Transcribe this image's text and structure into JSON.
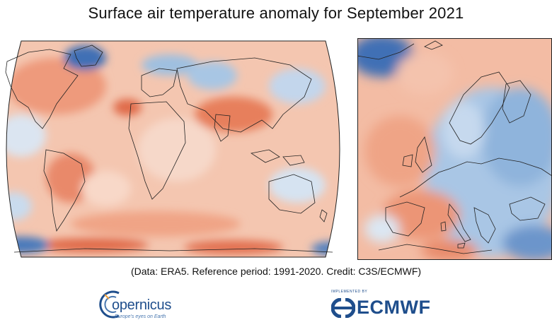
{
  "title": "Surface air temperature anomaly for September 2021",
  "credit": "(Data: ERA5.  Reference period: 1991-2020.  Credit: C3S/ECMWF)",
  "maps": {
    "global": {
      "projection": "robinson"
    },
    "europe": {}
  },
  "colors": {
    "warm_strong": "#e06a4a",
    "warm": "#f2a98c",
    "warm_light": "#f8d2c0",
    "neutral": "#f7eee9",
    "cool_light": "#d3e1f0",
    "cool": "#9fc0e0",
    "cool_strong": "#3f70b5",
    "coastline": "#222222",
    "brand_blue": "#1f4e8c"
  },
  "logos": {
    "copernicus": {
      "wordmark": "opernicus",
      "tagline": "Europe's eyes on Earth"
    },
    "ecmwf": {
      "wordmark": "ECMWF",
      "implemented_by": "IMPLEMENTED BY"
    }
  }
}
